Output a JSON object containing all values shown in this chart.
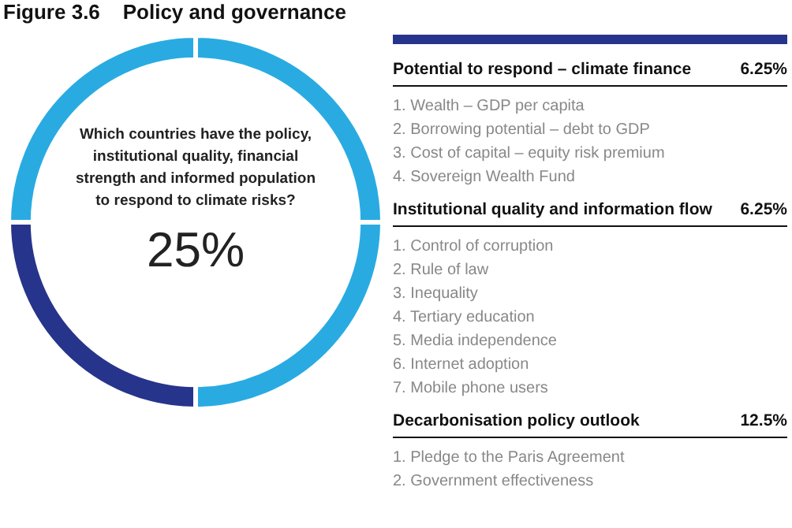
{
  "chart_data": [
    {
      "type": "donut",
      "title": "Figure 3.6    Policy and governance",
      "categories": [
        null,
        null,
        null,
        null
      ],
      "values": [
        25,
        25,
        25,
        25
      ],
      "colors": [
        "#29abe2",
        "#29abe2",
        "#27348b",
        "#29abe2"
      ],
      "legend": false,
      "annotations": [
        "Which countries have the policy, institutional quality, financial strength and informed population to respond to climate risks?",
        "25%"
      ]
    },
    {
      "type": "other",
      "title": "Potential to respond – climate finance",
      "value_labels": [
        "6.25%"
      ],
      "annotations": [
        "1. Wealth – GDP per capita",
        "2. Borrowing potential – debt to GDP",
        "3. Cost of capital – equity risk premium",
        "4. Sovereign Wealth Fund"
      ]
    },
    {
      "type": "other",
      "title": "Institutional quality and information flow",
      "value_labels": [
        "6.25%"
      ],
      "annotations": [
        "1. Control of corruption",
        "2. Rule of law",
        "3. Inequality",
        "4. Tertiary education",
        "5. Media independence",
        "6. Internet adoption",
        "7. Mobile phone users"
      ]
    },
    {
      "type": "other",
      "title": "Decarbonisation policy outlook",
      "value_labels": [
        "12.5%"
      ],
      "annotations": [
        "1. Pledge to the Paris Agreement",
        "2. Government effectiveness"
      ]
    }
  ]
}
